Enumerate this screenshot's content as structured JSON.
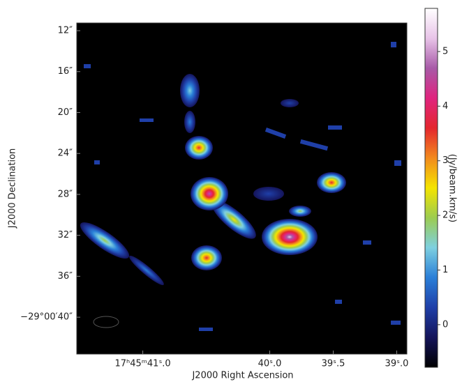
{
  "chart_data": {
    "type": "image",
    "xlabel": "J2000 Right Ascension",
    "ylabel": "J2000 Declination",
    "xlim": [
      41.52,
      38.92
    ],
    "xticks": [
      {
        "value": 41,
        "label": "17ʰ45ᵐ41ˢ.0"
      },
      {
        "value": 40,
        "label": "40ˢ.0"
      },
      {
        "value": 39.5,
        "label": "39ˢ.5"
      },
      {
        "value": 39,
        "label": "39ˢ.0"
      }
    ],
    "ylim": [
      43.6,
      11.25
    ],
    "yticks": [
      {
        "value": 12,
        "label": "12″"
      },
      {
        "value": 16,
        "label": "16″"
      },
      {
        "value": 20,
        "label": "20″"
      },
      {
        "value": 24,
        "label": "24″"
      },
      {
        "value": 28,
        "label": "28″"
      },
      {
        "value": 32,
        "label": "32″"
      },
      {
        "value": 36,
        "label": "36″"
      },
      {
        "value": 40,
        "label": "−29°00′40″"
      }
    ],
    "colorbar": {
      "label": "(Jy/beam.km/s)",
      "lim": [
        -0.78,
        5.79
      ],
      "ticks": [
        0,
        1,
        2,
        3,
        4,
        5
      ],
      "colormap": [
        "#000000",
        "#14145a",
        "#1f3fa8",
        "#2a7fd8",
        "#7ed0e0",
        "#9ccc50",
        "#f4e400",
        "#f28a1e",
        "#e4262e",
        "#e0247e",
        "#a85aa8",
        "#e8c4e8",
        "#ffffff"
      ]
    }
  }
}
